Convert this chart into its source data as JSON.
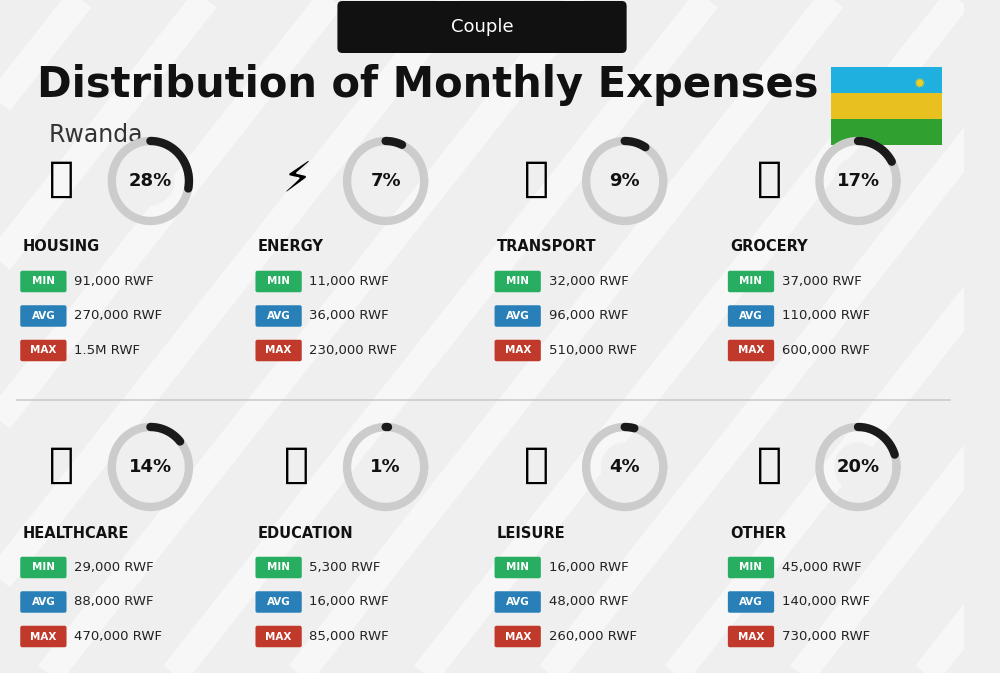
{
  "title": "Distribution of Monthly Expenses",
  "subtitle": "Rwanda",
  "header_label": "Couple",
  "bg_color": "#efefef",
  "categories": [
    {
      "name": "HOUSING",
      "pct": 28,
      "min": "91,000 RWF",
      "avg": "270,000 RWF",
      "max": "1.5M RWF",
      "col": 0,
      "row": 0
    },
    {
      "name": "ENERGY",
      "pct": 7,
      "min": "11,000 RWF",
      "avg": "36,000 RWF",
      "max": "230,000 RWF",
      "col": 1,
      "row": 0
    },
    {
      "name": "TRANSPORT",
      "pct": 9,
      "min": "32,000 RWF",
      "avg": "96,000 RWF",
      "max": "510,000 RWF",
      "col": 2,
      "row": 0
    },
    {
      "name": "GROCERY",
      "pct": 17,
      "min": "37,000 RWF",
      "avg": "110,000 RWF",
      "max": "600,000 RWF",
      "col": 3,
      "row": 0
    },
    {
      "name": "HEALTHCARE",
      "pct": 14,
      "min": "29,000 RWF",
      "avg": "88,000 RWF",
      "max": "470,000 RWF",
      "col": 0,
      "row": 1
    },
    {
      "name": "EDUCATION",
      "pct": 1,
      "min": "5,300 RWF",
      "avg": "16,000 RWF",
      "max": "85,000 RWF",
      "col": 1,
      "row": 1
    },
    {
      "name": "LEISURE",
      "pct": 4,
      "min": "16,000 RWF",
      "avg": "48,000 RWF",
      "max": "260,000 RWF",
      "col": 2,
      "row": 1
    },
    {
      "name": "OTHER",
      "pct": 20,
      "min": "45,000 RWF",
      "avg": "140,000 RWF",
      "max": "730,000 RWF",
      "col": 3,
      "row": 1
    }
  ],
  "color_min": "#27ae60",
  "color_avg": "#2980b9",
  "color_max": "#c0392b",
  "donut_dark": "#1a1a1a",
  "donut_gray": "#cccccc",
  "flag_blue": "#20b0e0",
  "flag_yellow": "#e8c020",
  "flag_green": "#30a030",
  "title_fontsize": 30,
  "subtitle_fontsize": 17
}
